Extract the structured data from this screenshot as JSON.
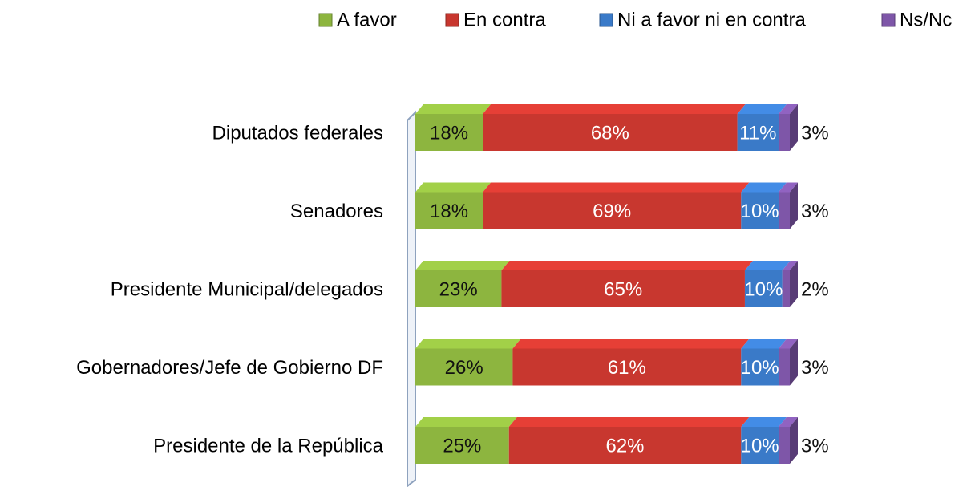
{
  "chart_data": {
    "type": "stacked-bar-horizontal",
    "categories": [
      "Diputados federales",
      "Senadores",
      "Presidente Municipal/delegados",
      "Gobernadores/Jefe de Gobierno DF",
      "Presidente de la República"
    ],
    "series": [
      {
        "name": "A favor",
        "color": "#8db53f",
        "values": [
          18,
          18,
          23,
          26,
          25
        ],
        "value_labels": [
          "18%",
          "18%",
          "23%",
          "26%",
          "25%"
        ]
      },
      {
        "name": "En contra",
        "color": "#c8372f",
        "values": [
          68,
          69,
          65,
          61,
          62
        ],
        "value_labels": [
          "68%",
          "69%",
          "65%",
          "61%",
          "62%"
        ]
      },
      {
        "name": "Ni a favor ni en contra",
        "color": "#3a7ac8",
        "values": [
          11,
          10,
          10,
          10,
          10
        ],
        "value_labels": [
          "11%",
          "10%",
          "10%",
          "10%",
          "10%"
        ]
      },
      {
        "name": "Ns/Nc",
        "color": "#7e56a8",
        "values": [
          3,
          3,
          2,
          3,
          3
        ],
        "value_labels": [
          "3%",
          "3%",
          "2%",
          "3%",
          "3%"
        ]
      }
    ],
    "xlim": [
      0,
      100
    ],
    "legend": "top"
  }
}
